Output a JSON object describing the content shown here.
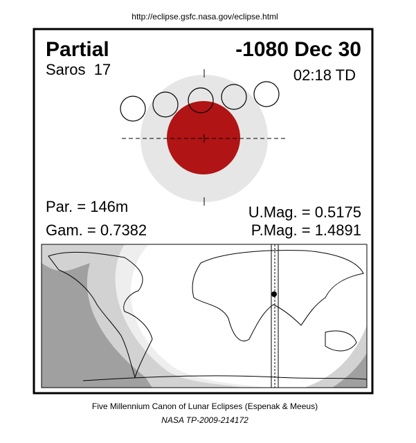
{
  "header": {
    "url": "http://eclipse.gsfc.nasa.gov/eclipse.html"
  },
  "eclipse": {
    "type": "Partial",
    "date": "-1080 Dec 30",
    "saros": "Saros  17",
    "time": "02:18 TD",
    "parameters": {
      "par": "Par. = 146m",
      "gam": "Gam. = 0.7382",
      "umag": "U.Mag. = 0.5175",
      "pmag": "P.Mag. = 1.4891"
    }
  },
  "footer": {
    "line1": "Five Millennium Canon of Lunar Eclipses (Espenak & Meeus)",
    "line2": "NASA TP-2009-214172"
  }
}
